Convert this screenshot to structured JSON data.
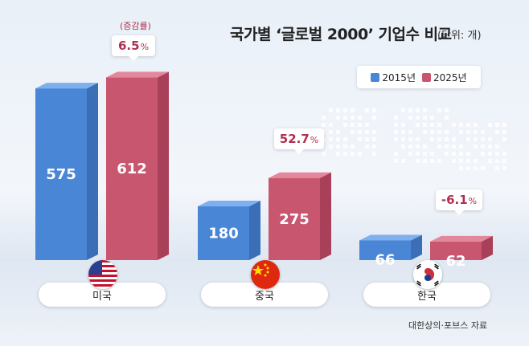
{
  "title": "국가별 ‘글로벌 2000’ 기업수 비교",
  "unit": "(단위: 개)",
  "rate_label": "(증감률)",
  "source": "대한상의·포브스 자료",
  "colors": {
    "y2015": "#4a86d6",
    "y2025": "#c9566f",
    "rate": "#b0304f"
  },
  "chart_data": {
    "type": "bar",
    "categories": [
      "미국",
      "중국",
      "한국"
    ],
    "series": [
      {
        "name": "2015년",
        "values": [
          575,
          180,
          66
        ]
      },
      {
        "name": "2025년",
        "values": [
          612,
          275,
          62
        ]
      }
    ],
    "change_rates": [
      "6.5",
      "52.7",
      "-6.1"
    ],
    "change_unit": "%",
    "legend_position": "top-right"
  }
}
